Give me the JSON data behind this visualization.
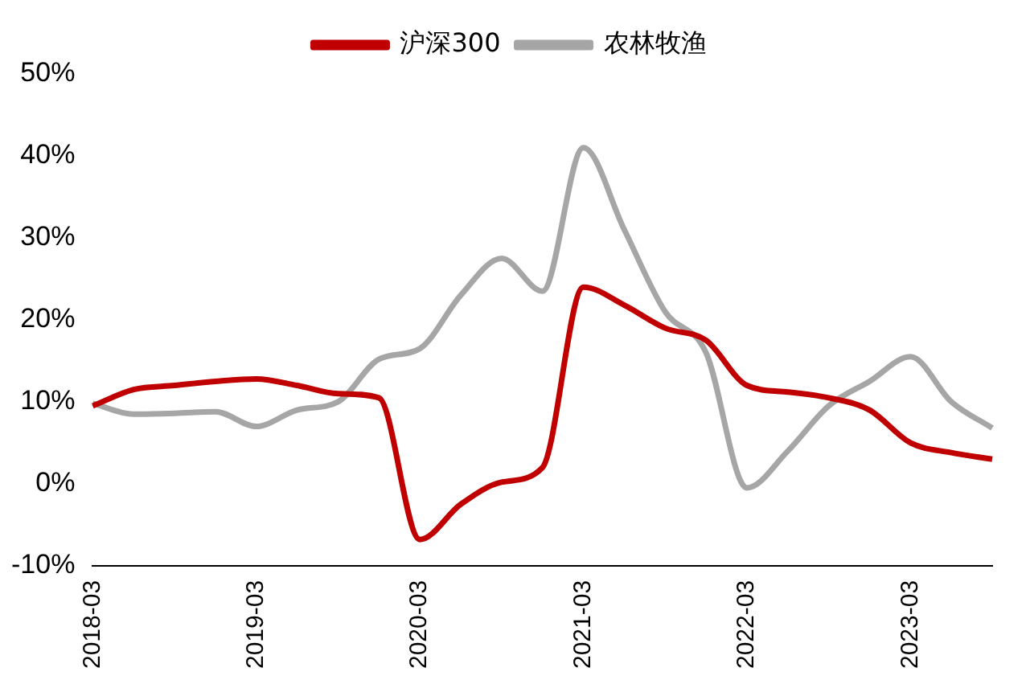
{
  "chart_data": {
    "type": "line",
    "categories": [
      "2018-03",
      null,
      null,
      null,
      "2019-03",
      null,
      null,
      null,
      "2020-03",
      null,
      null,
      null,
      "2021-03",
      null,
      null,
      null,
      "2022-03",
      null,
      null,
      null,
      "2023-03",
      null,
      null
    ],
    "series": [
      {
        "name": "沪深300",
        "color": "#c00000",
        "values": [
          9.5,
          11.5,
          12,
          12.5,
          12.8,
          12,
          11,
          10.5,
          -6.8,
          -2.5,
          0.2,
          2,
          24,
          21.8,
          19,
          17.5,
          12,
          11.2,
          10.5,
          9,
          5,
          3.8,
          3
        ]
      },
      {
        "name": "农林牧渔",
        "color": "#a6a6a6",
        "values": [
          9.8,
          8.5,
          8.6,
          8.8,
          7,
          9,
          10,
          15.2,
          16.5,
          23,
          27.5,
          23.5,
          41,
          31,
          21,
          16,
          -0.5,
          4,
          9.5,
          12.5,
          15.5,
          10,
          6.8
        ]
      }
    ],
    "ylim": [
      -10,
      50
    ],
    "yticks": [
      {
        "value": -10,
        "label": "-10%"
      },
      {
        "value": 0,
        "label": "0%"
      },
      {
        "value": 10,
        "label": "10%"
      },
      {
        "value": 20,
        "label": "20%"
      },
      {
        "value": 30,
        "label": "30%"
      },
      {
        "value": 40,
        "label": "40%"
      },
      {
        "value": 50,
        "label": "50%"
      }
    ],
    "grid": false,
    "legend": "top",
    "marker": "none",
    "line_style": "solid"
  }
}
